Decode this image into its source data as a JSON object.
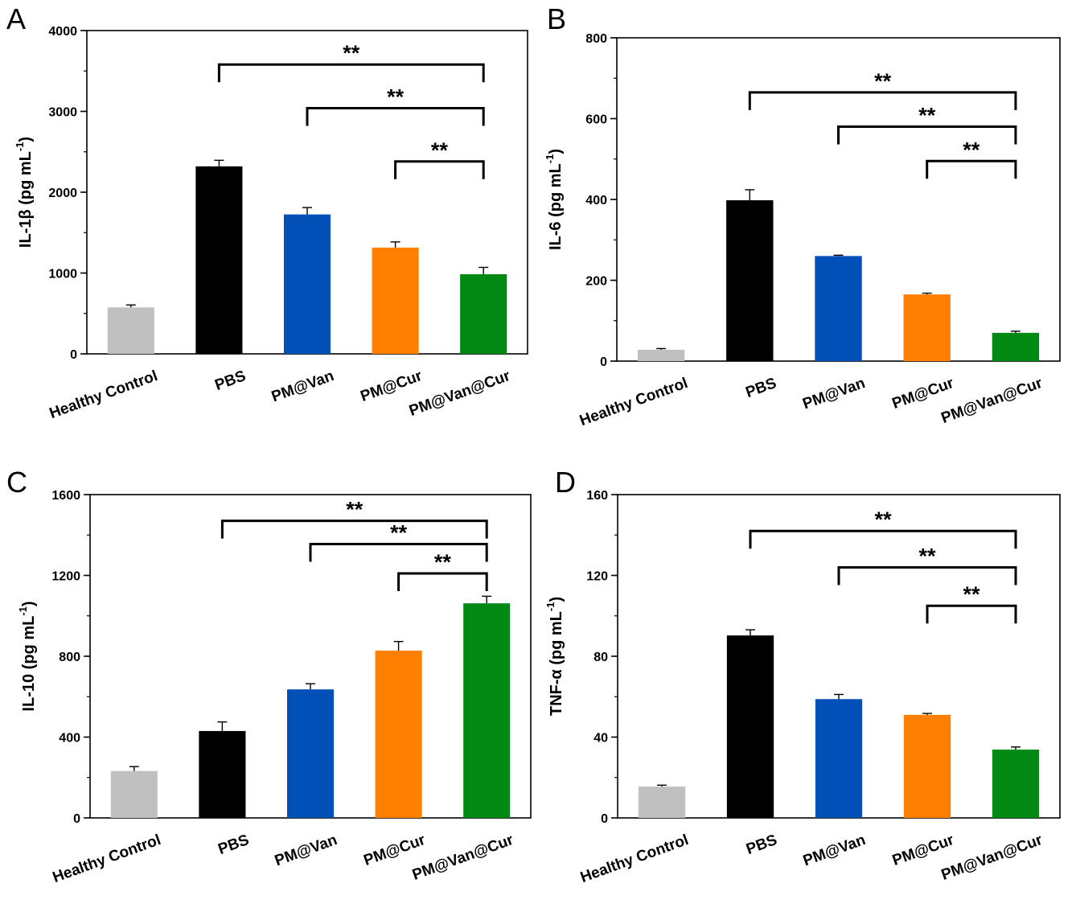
{
  "chart_data": [
    {
      "type": "bar",
      "panel": "A",
      "categories": [
        "Healthy Control",
        "PBS",
        "PM@Van",
        "PM@Cur",
        "PM@Van@Cur"
      ],
      "values": [
        575,
        2320,
        1725,
        1315,
        985
      ],
      "errors": [
        30,
        75,
        85,
        70,
        85
      ],
      "colors": [
        "#c0c0c0",
        "#000000",
        "#0050b8",
        "#ff8000",
        "#008a14"
      ],
      "ylabel": "IL-1β (pg mL",
      "ylabel_sup": "-1",
      "ylabel_close": ")",
      "ylim": [
        0,
        4000
      ],
      "yticks": [
        "0",
        "1000",
        "2000",
        "3000",
        "4000"
      ],
      "ytick_values": [
        0,
        1000,
        2000,
        3000,
        4000
      ],
      "minor_tick_step": 500,
      "significance": [
        {
          "from": 1,
          "to": 4,
          "label": "**",
          "level": 3580
        },
        {
          "from": 2,
          "to": 4,
          "label": "**",
          "level": 3040
        },
        {
          "from": 3,
          "to": 4,
          "label": "**",
          "level": 2380
        }
      ]
    },
    {
      "type": "bar",
      "panel": "B",
      "categories": [
        "Healthy Control",
        "PBS",
        "PM@Van",
        "PM@Cur",
        "PM@Van@Cur"
      ],
      "values": [
        28,
        398,
        260,
        165,
        70
      ],
      "errors": [
        3,
        26,
        2,
        3,
        4
      ],
      "colors": [
        "#c0c0c0",
        "#000000",
        "#0050b8",
        "#ff8000",
        "#008a14"
      ],
      "ylabel": "IL-6 (pg mL",
      "ylabel_sup": "-1",
      "ylabel_close": ")",
      "ylim": [
        0,
        800
      ],
      "yticks": [
        "0",
        "200",
        "400",
        "600",
        "800"
      ],
      "ytick_values": [
        0,
        200,
        400,
        600,
        800
      ],
      "minor_tick_step": 100,
      "significance": [
        {
          "from": 1,
          "to": 4,
          "label": "**",
          "level": 665
        },
        {
          "from": 2,
          "to": 4,
          "label": "**",
          "level": 580
        },
        {
          "from": 3,
          "to": 4,
          "label": "**",
          "level": 495
        }
      ]
    },
    {
      "type": "bar",
      "panel": "C",
      "categories": [
        "Healthy Control",
        "PBS",
        "PM@Van",
        "PM@Cur",
        "PM@Van@Cur"
      ],
      "values": [
        232,
        430,
        636,
        828,
        1062
      ],
      "errors": [
        22,
        45,
        28,
        45,
        35
      ],
      "colors": [
        "#c0c0c0",
        "#000000",
        "#0050b8",
        "#ff8000",
        "#008a14"
      ],
      "ylabel": "IL-10 (pg mL",
      "ylabel_sup": "-1",
      "ylabel_close": ")",
      "ylim": [
        0,
        1600
      ],
      "yticks": [
        "0",
        "400",
        "800",
        "1200",
        "1600"
      ],
      "ytick_values": [
        0,
        400,
        800,
        1200,
        1600
      ],
      "minor_tick_step": 200,
      "significance": [
        {
          "from": 1,
          "to": 4,
          "label": "**",
          "level": 1470
        },
        {
          "from": 2,
          "to": 4,
          "label": "**",
          "level": 1355
        },
        {
          "from": 3,
          "to": 4,
          "label": "**",
          "level": 1210
        }
      ]
    },
    {
      "type": "bar",
      "panel": "D",
      "categories": [
        "Healthy Control",
        "PBS",
        "PM@Van",
        "PM@Cur",
        "PM@Van@Cur"
      ],
      "values": [
        15.5,
        90.3,
        58.8,
        51.0,
        33.8
      ],
      "errors": [
        0.7,
        2.8,
        2.3,
        0.7,
        1.3
      ],
      "colors": [
        "#c0c0c0",
        "#000000",
        "#0050b8",
        "#ff8000",
        "#008a14"
      ],
      "ylabel": "TNF-α (pg mL",
      "ylabel_sup": "-1",
      "ylabel_close": ")",
      "ylim": [
        0,
        160
      ],
      "yticks": [
        "0",
        "40",
        "80",
        "120",
        "160"
      ],
      "ytick_values": [
        0,
        40,
        80,
        120,
        160
      ],
      "minor_tick_step": 20,
      "significance": [
        {
          "from": 1,
          "to": 4,
          "label": "**",
          "level": 142
        },
        {
          "from": 2,
          "to": 4,
          "label": "**",
          "level": 124
        },
        {
          "from": 3,
          "to": 4,
          "label": "**",
          "level": 105
        }
      ]
    }
  ]
}
